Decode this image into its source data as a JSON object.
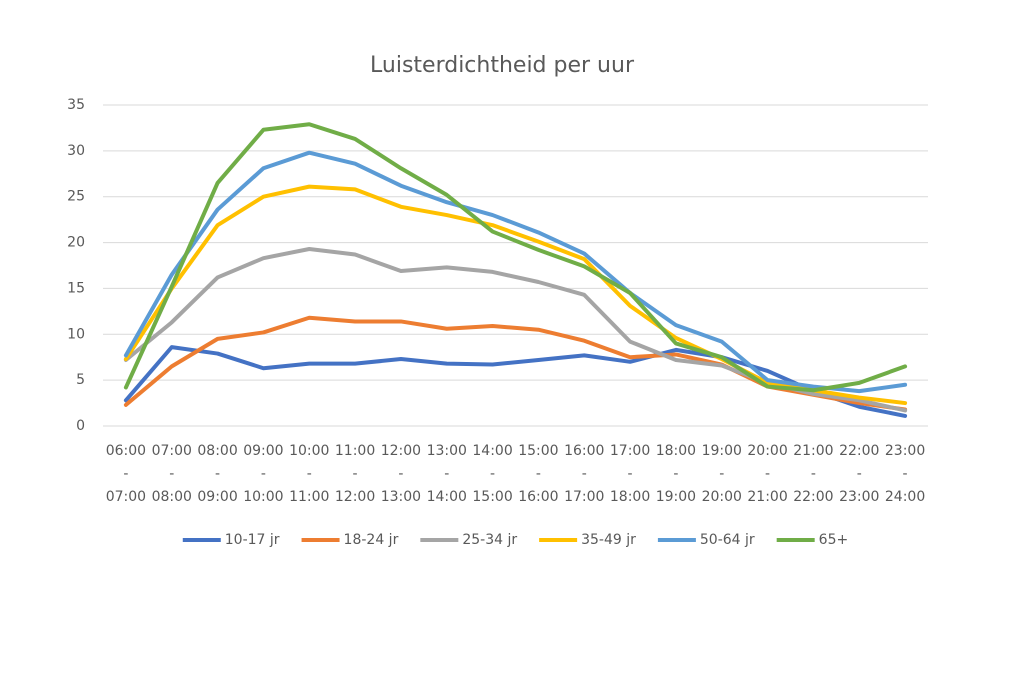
{
  "chart_data": {
    "type": "line",
    "title": "Luisterdichtheid per uur",
    "categories": [
      "06:00 - 07:00",
      "07:00 - 08:00",
      "08:00 - 09:00",
      "09:00 - 10:00",
      "10:00 - 11:00",
      "11:00 - 12:00",
      "12:00 - 13:00",
      "13:00 - 14:00",
      "14:00 - 15:00",
      "15:00 - 16:00",
      "16:00 - 17:00",
      "17:00 - 18:00",
      "18:00 - 19:00",
      "19:00 - 20:00",
      "20:00 - 21:00",
      "21:00 - 22:00",
      "22:00 - 23:00",
      "23:00 - 24:00"
    ],
    "series": [
      {
        "name": "10-17 jr",
        "color": "#4472c4",
        "values": [
          2.8,
          8.6,
          7.9,
          6.3,
          6.8,
          6.8,
          7.3,
          6.8,
          6.7,
          7.2,
          7.7,
          7.0,
          8.3,
          7.5,
          6.0,
          3.8,
          2.1,
          1.1
        ]
      },
      {
        "name": "18-24 jr",
        "color": "#ed7d31",
        "values": [
          2.3,
          6.5,
          9.5,
          10.2,
          11.8,
          11.4,
          11.4,
          10.6,
          10.9,
          10.5,
          9.3,
          7.5,
          7.8,
          6.7,
          4.3,
          3.4,
          2.5,
          1.8
        ]
      },
      {
        "name": "25-34 jr",
        "color": "#a5a5a5",
        "values": [
          7.2,
          11.3,
          16.2,
          18.3,
          19.3,
          18.7,
          16.9,
          17.3,
          16.8,
          15.7,
          14.3,
          9.2,
          7.2,
          6.6,
          4.7,
          3.5,
          2.8,
          1.7
        ]
      },
      {
        "name": "35-49 jr",
        "color": "#ffc000",
        "values": [
          7.3,
          15.0,
          21.9,
          25.0,
          26.1,
          25.8,
          23.9,
          23.0,
          21.9,
          20.1,
          18.2,
          13.1,
          9.6,
          7.3,
          4.7,
          3.9,
          3.1,
          2.5
        ]
      },
      {
        "name": "50-64 jr",
        "color": "#5b9bd5",
        "values": [
          7.7,
          16.5,
          23.6,
          28.1,
          29.8,
          28.6,
          26.2,
          24.4,
          23.0,
          21.1,
          18.8,
          14.5,
          11.0,
          9.2,
          5.0,
          4.3,
          3.8,
          4.5
        ]
      },
      {
        "name": "65+",
        "color": "#70ad47",
        "values": [
          4.2,
          15.2,
          26.5,
          32.3,
          32.9,
          31.3,
          28.1,
          25.2,
          21.2,
          19.2,
          17.4,
          14.5,
          9.0,
          7.5,
          4.3,
          3.9,
          4.7,
          6.5
        ]
      }
    ],
    "ylim": [
      0,
      35
    ],
    "yticks": [
      0,
      5,
      10,
      15,
      20,
      25,
      30,
      35
    ],
    "grid": true,
    "legend": "bottom"
  }
}
